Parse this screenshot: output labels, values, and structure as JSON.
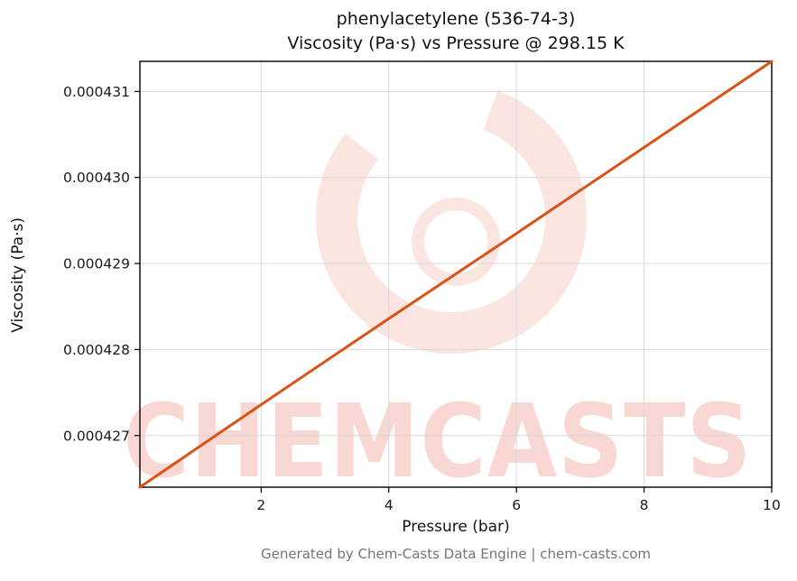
{
  "header": {
    "title_line1": "phenylacetylene (536-74-3)",
    "title_line2": "Viscosity (Pa·s) vs Pressure @ 298.15 K"
  },
  "footer": {
    "credit": "Generated by Chem-Casts Data Engine | chem-casts.com"
  },
  "watermark": {
    "text": "CHEMCASTS",
    "logo": "chemcasts-c-logo",
    "color": "#e44e38"
  },
  "chart_data": {
    "type": "line",
    "title": "phenylacetylene (536-74-3) — Viscosity (Pa·s) vs Pressure @ 298.15 K",
    "xlabel": "Pressure (bar)",
    "ylabel": "Viscosity (Pa·s)",
    "x": [
      0.1,
      2,
      4,
      6,
      8,
      10
    ],
    "y": [
      0.0004264,
      0.00042736,
      0.00042836,
      0.00042935,
      0.00043035,
      0.00043135
    ],
    "xlim": [
      0.1,
      10
    ],
    "ylim": [
      0.0004264,
      0.00043135
    ],
    "xticks": [
      2,
      4,
      6,
      8,
      10
    ],
    "yticks": [
      0.000427,
      0.000428,
      0.000429,
      0.00043,
      0.000431
    ],
    "ytick_decimals": 6,
    "grid": true,
    "legend_position": "none",
    "line_color": "#d95319",
    "grid_color": "#d9d9d9",
    "frame_color": "#000000",
    "tick_label_color": "#1a1a1a"
  }
}
